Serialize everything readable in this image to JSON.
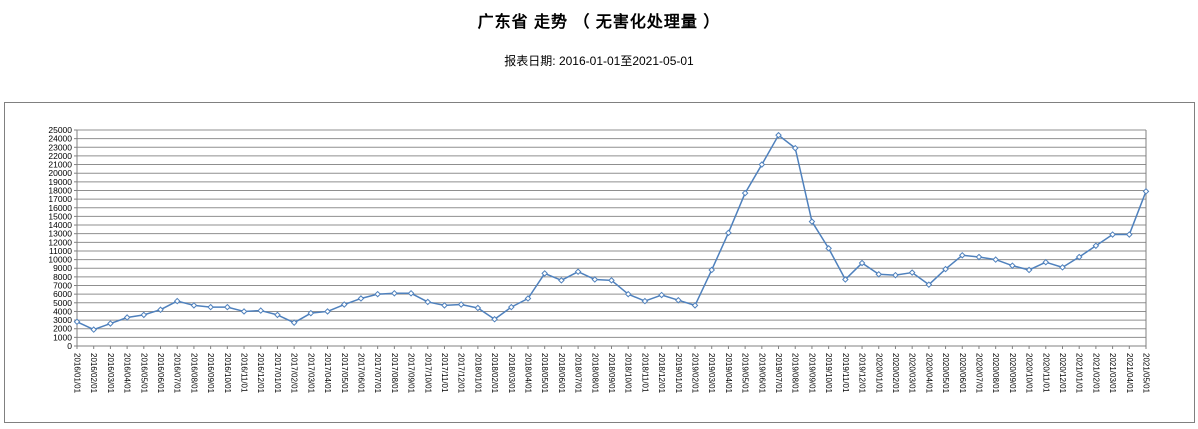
{
  "header": {
    "title": "广东省 走势 （ 无害化处理量 ）",
    "subtitle": "报表日期: 2016-01-01至2021-05-01"
  },
  "chart_data": {
    "type": "line",
    "title": "广东省 走势 （ 无害化处理量 ）",
    "subtitle": "报表日期: 2016-01-01至2021-05-01",
    "xlabel": "",
    "ylabel": "",
    "ylim": [
      0,
      25000
    ],
    "ytick_step": 1000,
    "grid": true,
    "legend": false,
    "line_color": "#4f81bd",
    "marker": "diamond",
    "marker_fill": "#ffffff",
    "grid_color": "#8f8f8f",
    "axis_color": "#808080",
    "label_color": "#000000",
    "x": [
      "2016/01/01",
      "2016/02/01",
      "2016/03/01",
      "2016/04/01",
      "2016/05/01",
      "2016/06/01",
      "2016/07/01",
      "2016/08/01",
      "2016/09/01",
      "2016/10/01",
      "2016/11/01",
      "2016/12/01",
      "2017/01/01",
      "2017/02/01",
      "2017/03/01",
      "2017/04/01",
      "2017/05/01",
      "2017/06/01",
      "2017/07/01",
      "2017/08/01",
      "2017/09/01",
      "2017/10/01",
      "2017/11/01",
      "2017/12/01",
      "2018/01/01",
      "2018/02/01",
      "2018/03/01",
      "2018/04/01",
      "2018/05/01",
      "2018/06/01",
      "2018/07/01",
      "2018/08/01",
      "2018/09/01",
      "2018/10/01",
      "2018/11/01",
      "2018/12/01",
      "2019/01/01",
      "2019/02/01",
      "2019/03/01",
      "2019/04/01",
      "2019/05/01",
      "2019/06/01",
      "2019/07/01",
      "2019/08/01",
      "2019/09/01",
      "2019/10/01",
      "2019/11/01",
      "2019/12/01",
      "2020/01/01",
      "2020/02/01",
      "2020/03/01",
      "2020/04/01",
      "2020/05/01",
      "2020/06/01",
      "2020/07/01",
      "2020/08/01",
      "2020/09/01",
      "2020/10/01",
      "2020/11/01",
      "2020/12/01",
      "2021/01/01",
      "2021/02/01",
      "2021/03/01",
      "2021/04/01",
      "2021/05/01"
    ],
    "values": [
      2800,
      1900,
      2600,
      3300,
      3600,
      4200,
      5200,
      4700,
      4500,
      4500,
      4000,
      4100,
      3600,
      2700,
      3800,
      4000,
      4800,
      5500,
      6000,
      6100,
      6100,
      5100,
      4700,
      4800,
      4400,
      3100,
      4500,
      5500,
      8400,
      7600,
      8600,
      7700,
      7600,
      6000,
      5200,
      5900,
      5300,
      4700,
      8800,
      13100,
      17700,
      21000,
      24400,
      22900,
      14400,
      11300,
      7700,
      9600,
      8300,
      8200,
      8500,
      7100,
      8900,
      10500,
      10300,
      10000,
      9300,
      8800,
      9700,
      9100,
      10300,
      11600,
      12900,
      12900,
      17900
    ]
  }
}
